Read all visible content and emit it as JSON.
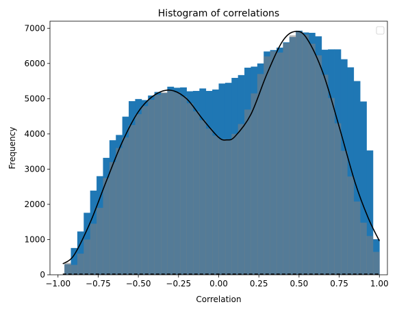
{
  "chart_data": {
    "type": "bar",
    "title": "Histogram of correlations",
    "xlabel": "Correlation",
    "ylabel": "Frequency",
    "xlim": [
      -1.05,
      1.05
    ],
    "ylim": [
      0,
      7200
    ],
    "xticks": [
      -1.0,
      -0.75,
      -0.5,
      -0.25,
      0.0,
      0.25,
      0.5,
      0.75,
      1.0
    ],
    "xtick_labels": [
      "−1.00",
      "−0.75",
      "−0.50",
      "−0.25",
      "0.00",
      "0.25",
      "0.50",
      "0.75",
      "1.00"
    ],
    "yticks": [
      0,
      1000,
      2000,
      3000,
      4000,
      5000,
      6000,
      7000
    ],
    "ytick_labels": [
      "0",
      "1000",
      "2000",
      "3000",
      "4000",
      "5000",
      "6000",
      "7000"
    ],
    "bin_edges": [
      -0.96,
      -0.92,
      -0.88,
      -0.84,
      -0.8,
      -0.76,
      -0.72,
      -0.68,
      -0.64,
      -0.6,
      -0.56,
      -0.52,
      -0.48,
      -0.44,
      -0.4,
      -0.36,
      -0.32,
      -0.28,
      -0.24,
      -0.2,
      -0.16,
      -0.12,
      -0.08,
      -0.04,
      0.0,
      0.04,
      0.08,
      0.12,
      0.16,
      0.2,
      0.24,
      0.28,
      0.32,
      0.36,
      0.4,
      0.44,
      0.48,
      0.52,
      0.56,
      0.6,
      0.64,
      0.68,
      0.72,
      0.76,
      0.8,
      0.84,
      0.88,
      0.92,
      0.96,
      1.0
    ],
    "series": [
      {
        "values": [
          300,
          760,
          1230,
          1760,
          2390,
          2800,
          3320,
          3820,
          3970,
          4490,
          4930,
          4990,
          4960,
          5090,
          5190,
          5160,
          5340,
          5310,
          5320,
          5210,
          5220,
          5290,
          5220,
          5260,
          5430,
          5450,
          5590,
          5670,
          5880,
          5910,
          6000,
          6340,
          6380,
          6450,
          6600,
          6750,
          6930,
          6880,
          6870,
          6770,
          6390,
          6400,
          6400,
          6120,
          5890,
          5500,
          4920,
          3530,
          1010
        ],
        "color": "#1f77b4"
      },
      {
        "values": [
          340,
          280,
          600,
          1000,
          1450,
          1900,
          2750,
          3200,
          3600,
          3900,
          4250,
          4560,
          4790,
          4970,
          5110,
          5180,
          5240,
          5180,
          5060,
          4870,
          4640,
          4390,
          4150,
          3950,
          3850,
          3850,
          4000,
          4280,
          4690,
          5150,
          5700,
          6200,
          6350,
          6310,
          6580,
          6800,
          6910,
          6820,
          6560,
          6230,
          5680,
          5020,
          4300,
          3520,
          2790,
          2080,
          1480,
          1100,
          650
        ],
        "color": "#808080"
      }
    ],
    "kde_curve": {
      "color": "#000000",
      "x": [
        -0.97,
        -0.9,
        -0.8,
        -0.7,
        -0.6,
        -0.5,
        -0.4,
        -0.3,
        -0.2,
        -0.1,
        0.0,
        0.05,
        0.1,
        0.2,
        0.3,
        0.4,
        0.48,
        0.55,
        0.65,
        0.75,
        0.85,
        0.93,
        1.0
      ],
      "y": [
        310,
        560,
        1480,
        2650,
        3770,
        4630,
        5100,
        5240,
        5000,
        4420,
        3900,
        3830,
        3920,
        4550,
        5700,
        6650,
        6910,
        6700,
        5720,
        4200,
        2600,
        1620,
        960
      ]
    },
    "legend": {
      "position": "top-right",
      "entries": []
    },
    "grid": false
  }
}
